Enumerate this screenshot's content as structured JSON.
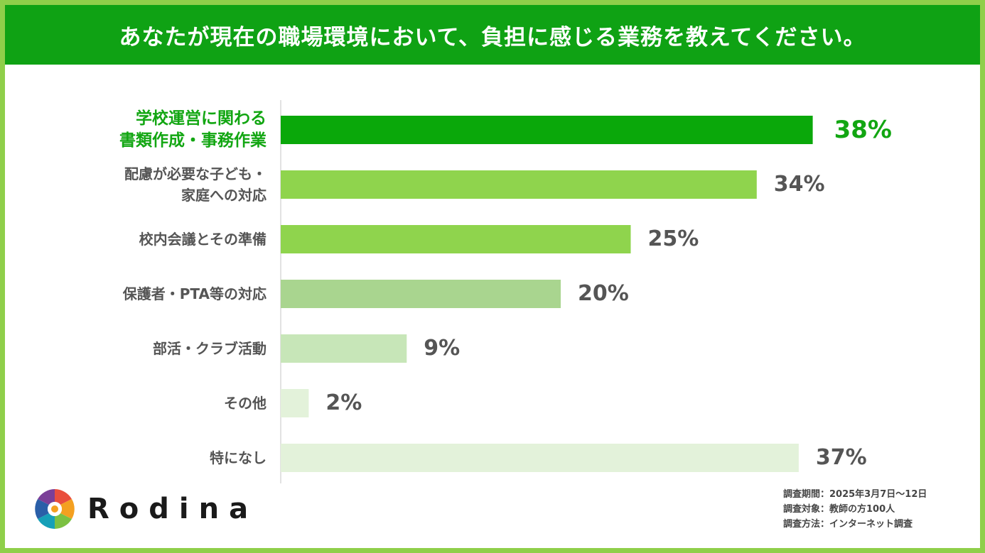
{
  "header": {
    "title": "あなたが現在の職場環境において、負担に感じる業務を教えてください。"
  },
  "chart_data": {
    "type": "bar",
    "orientation": "horizontal",
    "categories": [
      "学校運営に関わる\n書類作成・事務作業",
      "配慮が必要な子ども・\n家庭への対応",
      "校内会議とその準備",
      "保護者・PTA等の対応",
      "部活・クラブ活動",
      "その他",
      "特になし"
    ],
    "values": [
      38,
      34,
      25,
      20,
      9,
      2,
      37
    ],
    "value_labels": [
      "38%",
      "34%",
      "25%",
      "20%",
      "9%",
      "2%",
      "37%"
    ],
    "unit": "%",
    "highlight_index": 0,
    "bar_colors": [
      "#0aa80a",
      "#8fd44d",
      "#8fd44d",
      "#a9d58f",
      "#c7e6b8",
      "#e3f2da",
      "#e3f2da"
    ],
    "highlight_color": "#12a612",
    "grid": false,
    "legend": "none"
  },
  "brand": {
    "name": "Rodina",
    "logo_icon": "camera-aperture-icon"
  },
  "notes": [
    "調査期間：2025年3月7日～12日",
    "調査対象：教師の方100人",
    "調査方法：インターネット調査"
  ]
}
